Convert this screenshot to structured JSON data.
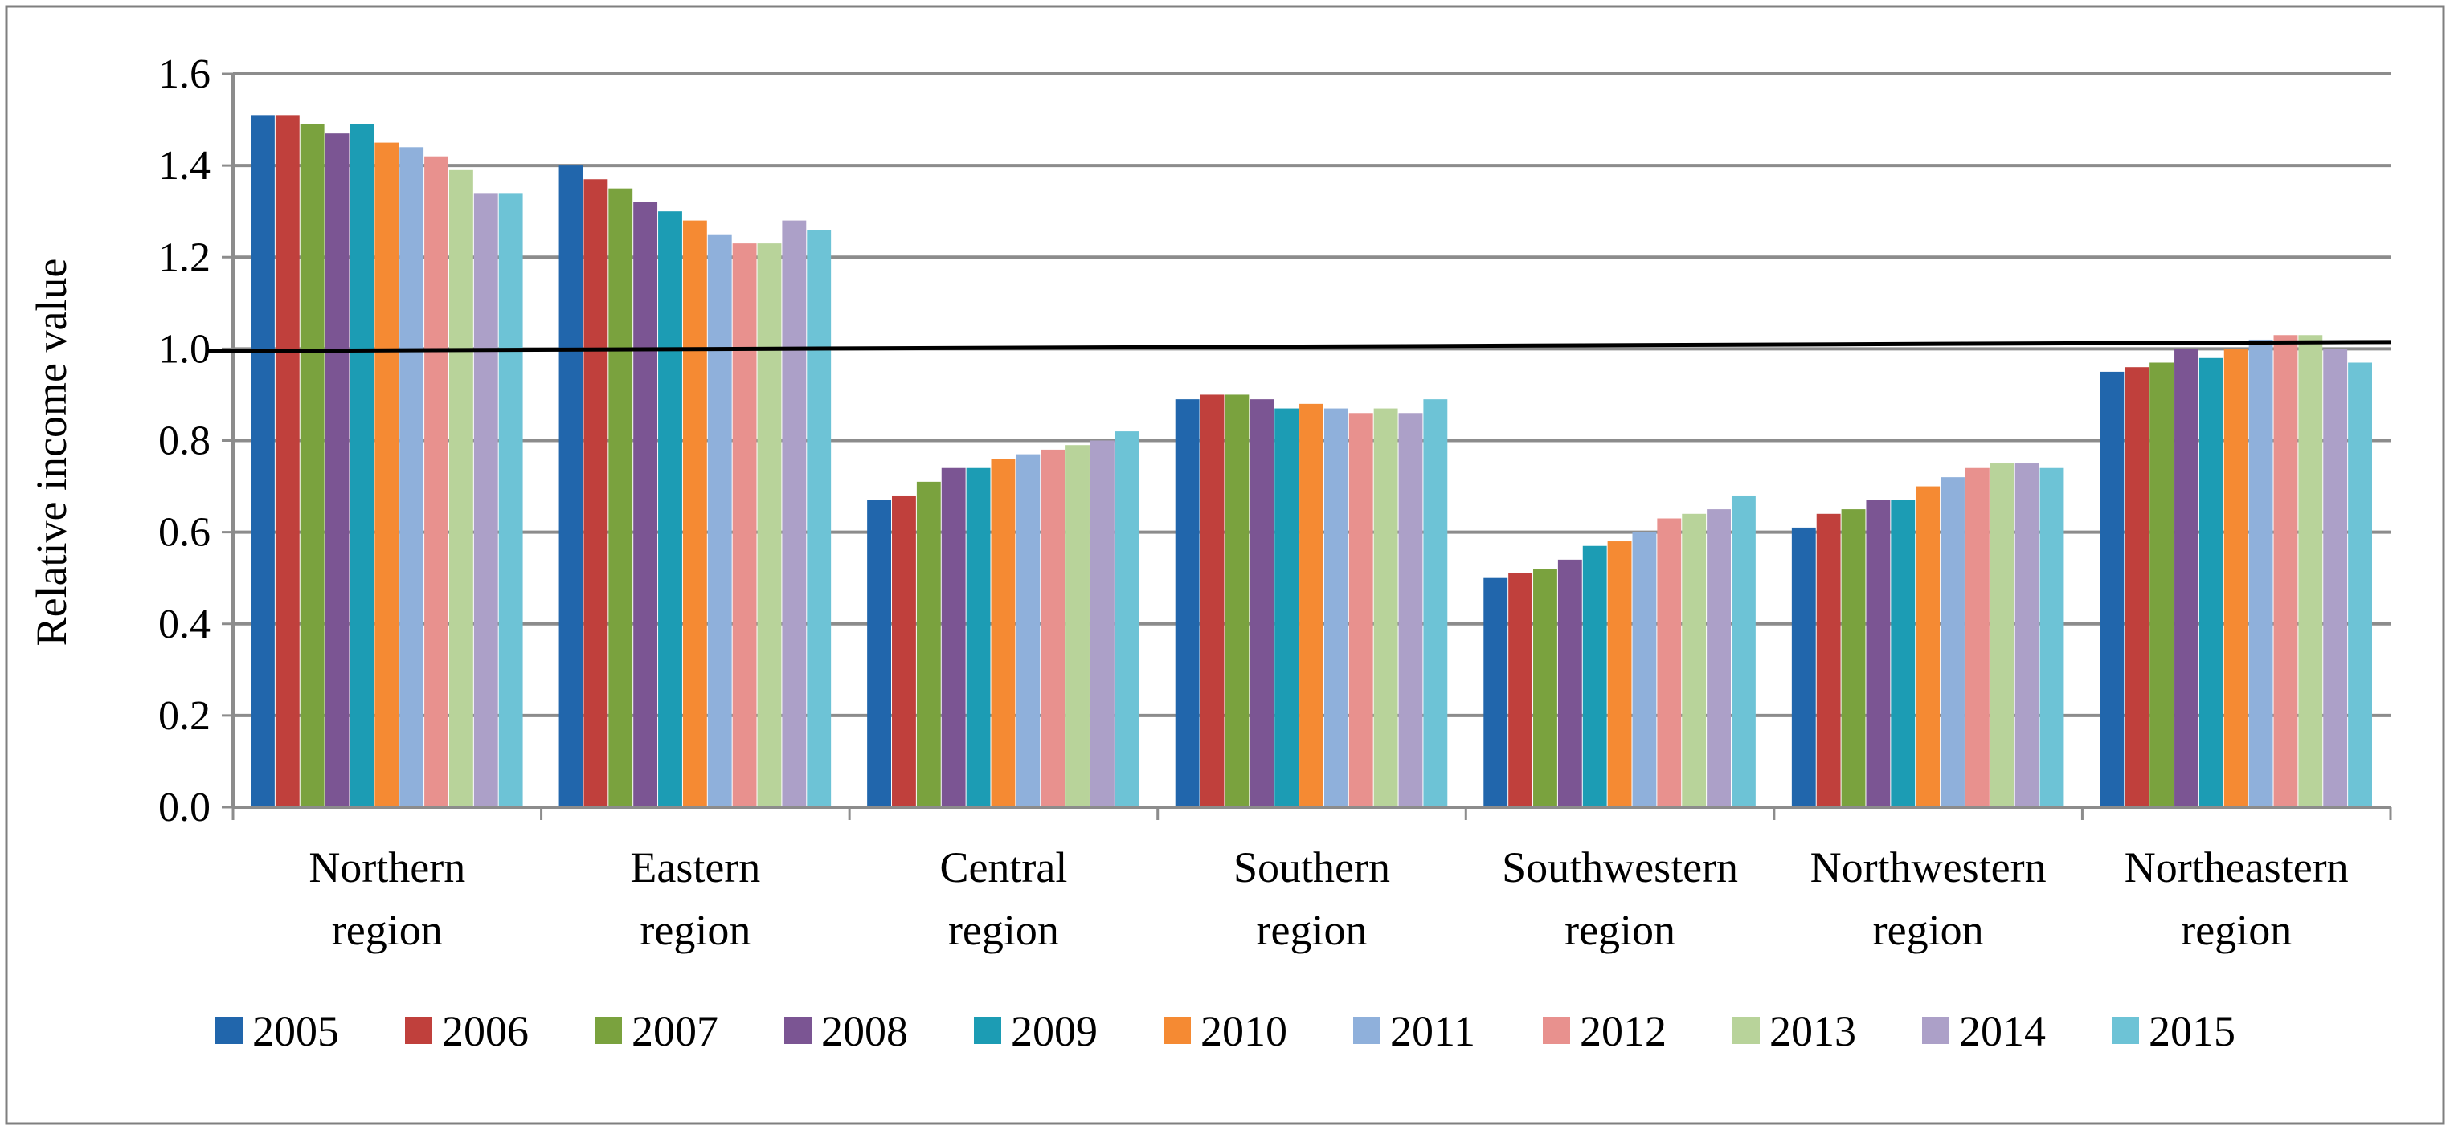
{
  "chart_data": {
    "type": "bar",
    "title": "",
    "xlabel": "",
    "ylabel": "Relative income value",
    "ylim": [
      0,
      1.6
    ],
    "yticks": [
      0,
      0.2,
      0.4,
      0.6,
      0.8,
      1.0,
      1.2,
      1.4,
      1.6
    ],
    "ytick_labels": [
      "0.0",
      "0.2",
      "0.4",
      "0.6",
      "0.8",
      "1.0",
      "1.2",
      "1.4",
      "1.6"
    ],
    "grid": "horizontal",
    "legend_position": "bottom",
    "categories": [
      [
        "Northern",
        "region"
      ],
      [
        "Eastern",
        "region"
      ],
      [
        "Central",
        "region"
      ],
      [
        "Southern",
        "region"
      ],
      [
        "Southwestern",
        "region"
      ],
      [
        "Northwestern",
        "region"
      ],
      [
        "Northeastern",
        "region"
      ]
    ],
    "series": [
      {
        "name": "2005",
        "color": "#2166AC",
        "values": [
          1.51,
          1.4,
          0.67,
          0.89,
          0.5,
          0.61,
          0.95
        ]
      },
      {
        "name": "2006",
        "color": "#C0403C",
        "values": [
          1.51,
          1.37,
          0.68,
          0.9,
          0.51,
          0.64,
          0.96
        ]
      },
      {
        "name": "2007",
        "color": "#7AA23E",
        "values": [
          1.49,
          1.35,
          0.71,
          0.9,
          0.52,
          0.65,
          0.97
        ]
      },
      {
        "name": "2008",
        "color": "#7B5593",
        "values": [
          1.47,
          1.32,
          0.74,
          0.89,
          0.54,
          0.67,
          1.0
        ]
      },
      {
        "name": "2009",
        "color": "#1C9CB4",
        "values": [
          1.49,
          1.3,
          0.74,
          0.87,
          0.57,
          0.67,
          0.98
        ]
      },
      {
        "name": "2010",
        "color": "#F58A33",
        "values": [
          1.45,
          1.28,
          0.76,
          0.88,
          0.58,
          0.7,
          1.0
        ]
      },
      {
        "name": "2011",
        "color": "#8FB0DB",
        "values": [
          1.44,
          1.25,
          0.77,
          0.87,
          0.6,
          0.72,
          1.02
        ]
      },
      {
        "name": "2012",
        "color": "#E8918E",
        "values": [
          1.42,
          1.23,
          0.78,
          0.86,
          0.63,
          0.74,
          1.03
        ]
      },
      {
        "name": "2013",
        "color": "#B8D39A",
        "values": [
          1.39,
          1.23,
          0.79,
          0.87,
          0.64,
          0.75,
          1.03
        ]
      },
      {
        "name": "2014",
        "color": "#ACA0C8",
        "values": [
          1.34,
          1.28,
          0.8,
          0.86,
          0.65,
          0.75,
          1.0
        ]
      },
      {
        "name": "2015",
        "color": "#6DC3D6",
        "values": [
          1.34,
          1.26,
          0.82,
          0.89,
          0.68,
          0.74,
          0.97
        ]
      }
    ],
    "reference_line": {
      "from": 0.995,
      "to": 1.015
    }
  }
}
